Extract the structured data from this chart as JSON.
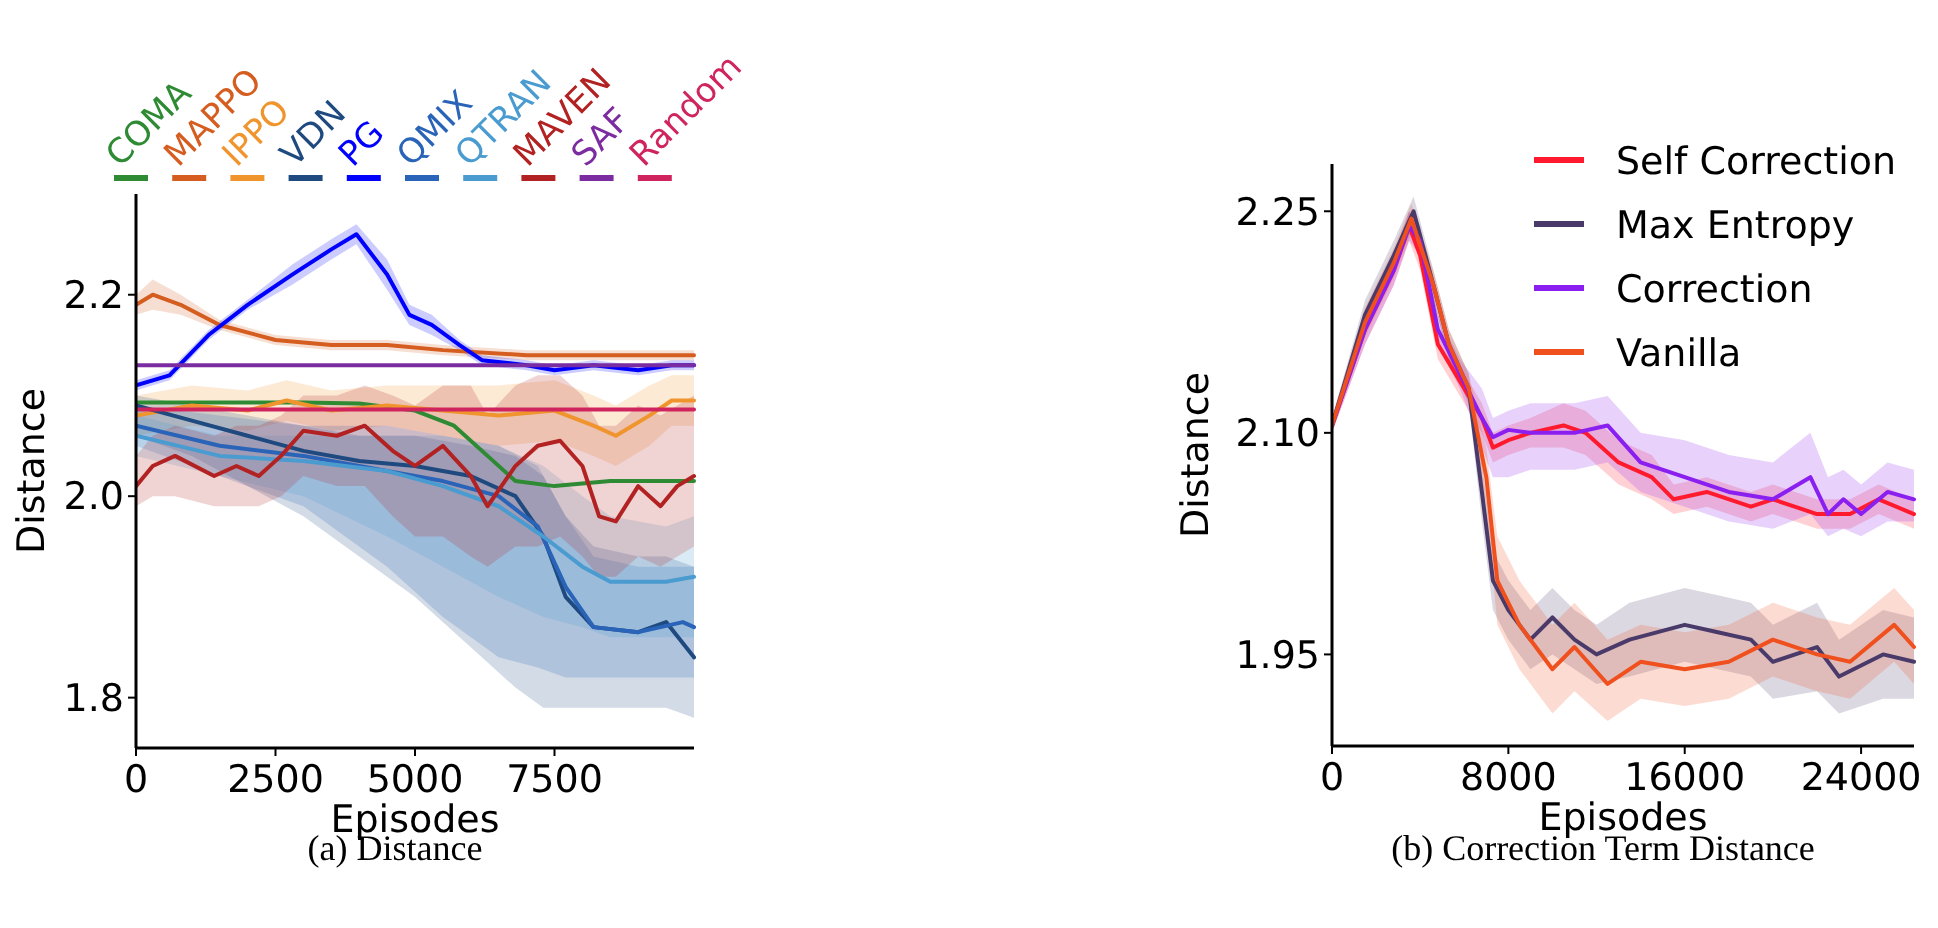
{
  "chart_data": [
    {
      "type": "line",
      "title": "(a) Distance",
      "xlabel": "Episodes",
      "ylabel": "Distance",
      "xlim": [
        0,
        10000
      ],
      "xticks": [
        0,
        2500,
        5000,
        7500
      ],
      "ylim": [
        1.75,
        2.3
      ],
      "yticks": [
        {
          "value": 1.8,
          "label": "1.8"
        },
        {
          "value": 2.0,
          "label": "2.0"
        },
        {
          "value": 2.2,
          "label": "2.2"
        }
      ],
      "legend": "top",
      "grid": false,
      "series": [
        {
          "name": "COMA",
          "color": "#2e8b34",
          "x": [
            0,
            1000,
            2000,
            3000,
            4000,
            5000,
            5700,
            6300,
            6800,
            7500,
            8500,
            10000
          ],
          "values": [
            2.093,
            2.093,
            2.093,
            2.093,
            2.092,
            2.085,
            2.07,
            2.04,
            2.015,
            2.01,
            2.015,
            2.015
          ]
        },
        {
          "name": "MAPPO",
          "color": "#d45d1f",
          "x": [
            0,
            300,
            800,
            1500,
            2500,
            3500,
            4500,
            5500,
            7000,
            8500,
            10000
          ],
          "values": [
            2.19,
            2.2,
            2.19,
            2.17,
            2.155,
            2.15,
            2.15,
            2.145,
            2.14,
            2.14,
            2.14
          ],
          "lower": [
            2.18,
            2.185,
            2.18,
            2.165,
            2.15,
            2.145,
            2.145,
            2.14,
            2.135,
            2.135,
            2.135
          ],
          "upper": [
            2.2,
            2.215,
            2.2,
            2.175,
            2.16,
            2.155,
            2.155,
            2.15,
            2.145,
            2.145,
            2.145
          ]
        },
        {
          "name": "IPPO",
          "color": "#f0952e",
          "x": [
            0,
            1000,
            2000,
            2700,
            3500,
            4500,
            5500,
            6500,
            7500,
            8200,
            8600,
            9200,
            9600,
            10000
          ],
          "values": [
            2.08,
            2.09,
            2.085,
            2.095,
            2.085,
            2.09,
            2.085,
            2.08,
            2.085,
            2.07,
            2.06,
            2.08,
            2.095,
            2.095
          ],
          "lower": [
            2.06,
            2.07,
            2.065,
            2.075,
            2.065,
            2.07,
            2.06,
            2.05,
            2.055,
            2.04,
            2.03,
            2.05,
            2.07,
            2.07
          ],
          "upper": [
            2.1,
            2.11,
            2.105,
            2.115,
            2.105,
            2.11,
            2.11,
            2.11,
            2.115,
            2.1,
            2.09,
            2.11,
            2.12,
            2.12
          ]
        },
        {
          "name": "VDN",
          "color": "#1f4a80",
          "x": [
            0,
            1000,
            2000,
            3000,
            4000,
            5000,
            6000,
            6800,
            7300,
            7700,
            8200,
            9000,
            9500,
            10000
          ],
          "values": [
            2.09,
            2.075,
            2.06,
            2.045,
            2.035,
            2.03,
            2.02,
            2.0,
            1.96,
            1.9,
            1.87,
            1.865,
            1.875,
            1.84
          ],
          "lower": [
            2.06,
            2.04,
            2.01,
            1.98,
            1.94,
            1.9,
            1.85,
            1.81,
            1.79,
            1.79,
            1.79,
            1.79,
            1.79,
            1.78
          ],
          "upper": [
            2.1,
            2.09,
            2.08,
            2.07,
            2.06,
            2.06,
            2.05,
            2.04,
            2.02,
            1.98,
            1.95,
            1.94,
            1.94,
            1.93
          ]
        },
        {
          "name": "PG",
          "color": "#0000ff",
          "x": [
            0,
            600,
            1300,
            2000,
            2800,
            3500,
            3950,
            4500,
            4900,
            5300,
            5800,
            6200,
            7000,
            7500,
            8200,
            9000,
            9600,
            10000
          ],
          "values": [
            2.11,
            2.12,
            2.16,
            2.19,
            2.22,
            2.245,
            2.26,
            2.22,
            2.18,
            2.17,
            2.15,
            2.135,
            2.13,
            2.125,
            2.13,
            2.125,
            2.13,
            2.13
          ],
          "lower": [
            2.105,
            2.115,
            2.155,
            2.185,
            2.21,
            2.235,
            2.25,
            2.205,
            2.17,
            2.16,
            2.145,
            2.13,
            2.125,
            2.12,
            2.125,
            2.12,
            2.125,
            2.125
          ],
          "upper": [
            2.115,
            2.125,
            2.165,
            2.195,
            2.23,
            2.255,
            2.27,
            2.235,
            2.19,
            2.18,
            2.155,
            2.14,
            2.135,
            2.13,
            2.135,
            2.13,
            2.135,
            2.135
          ]
        },
        {
          "name": "QMIX",
          "color": "#2a64b8",
          "x": [
            0,
            1500,
            3000,
            4500,
            5500,
            6500,
            7200,
            7700,
            8200,
            9000,
            9800,
            10000
          ],
          "values": [
            2.07,
            2.05,
            2.04,
            2.025,
            2.015,
            2.0,
            1.97,
            1.91,
            1.87,
            1.865,
            1.875,
            1.87
          ],
          "lower": [
            2.05,
            2.02,
            1.99,
            1.93,
            1.88,
            1.84,
            1.83,
            1.82,
            1.82,
            1.82,
            1.82,
            1.82
          ],
          "upper": [
            2.09,
            2.08,
            2.07,
            2.07,
            2.06,
            2.05,
            2.03,
            1.98,
            1.94,
            1.93,
            1.93,
            1.93
          ]
        },
        {
          "name": "QTRAN",
          "color": "#4a9bd0",
          "x": [
            0,
            1500,
            3000,
            4500,
            5500,
            6500,
            7300,
            8000,
            8500,
            9500,
            10000
          ],
          "values": [
            2.06,
            2.04,
            2.035,
            2.025,
            2.01,
            1.99,
            1.96,
            1.93,
            1.915,
            1.915,
            1.92
          ],
          "lower": [
            2.04,
            2.02,
            2.0,
            1.96,
            1.93,
            1.9,
            1.88,
            1.87,
            1.86,
            1.86,
            1.86
          ],
          "upper": [
            2.08,
            2.06,
            2.06,
            2.06,
            2.06,
            2.05,
            2.03,
            2.0,
            1.98,
            1.97,
            1.98
          ]
        },
        {
          "name": "MAVEN",
          "color": "#b22222",
          "x": [
            0,
            300,
            700,
            1400,
            1800,
            2200,
            2600,
            3000,
            3600,
            4100,
            4600,
            5000,
            5500,
            6000,
            6300,
            6800,
            7200,
            7600,
            8000,
            8300,
            8600,
            9000,
            9400,
            9700,
            10000
          ],
          "values": [
            2.01,
            2.03,
            2.04,
            2.02,
            2.03,
            2.02,
            2.04,
            2.065,
            2.06,
            2.07,
            2.045,
            2.03,
            2.05,
            2.02,
            1.99,
            2.03,
            2.05,
            2.055,
            2.03,
            1.98,
            1.975,
            2.01,
            1.99,
            2.01,
            2.02
          ],
          "lower": [
            1.99,
            2.0,
            2.0,
            1.99,
            1.99,
            1.99,
            2.0,
            2.02,
            2.01,
            2.01,
            1.98,
            1.96,
            1.96,
            1.94,
            1.93,
            1.95,
            1.95,
            1.96,
            1.94,
            1.92,
            1.92,
            1.94,
            1.93,
            1.94,
            1.95
          ],
          "upper": [
            2.04,
            2.06,
            2.07,
            2.06,
            2.07,
            2.07,
            2.08,
            2.1,
            2.1,
            2.11,
            2.1,
            2.09,
            2.11,
            2.11,
            2.08,
            2.11,
            2.12,
            2.12,
            2.1,
            2.07,
            2.07,
            2.09,
            2.08,
            2.09,
            2.1
          ]
        },
        {
          "name": "SAF",
          "color": "#7b2ca0",
          "x": [
            0,
            2500,
            5000,
            7500,
            10000
          ],
          "values": [
            2.13,
            2.13,
            2.13,
            2.13,
            2.13
          ]
        },
        {
          "name": "Random",
          "color": "#d0245e",
          "x": [
            0,
            2500,
            5000,
            7500,
            10000
          ],
          "values": [
            2.086,
            2.086,
            2.086,
            2.086,
            2.086
          ]
        }
      ]
    },
    {
      "type": "line",
      "title": "(b) Correction Term Distance",
      "xlabel": "Episodes",
      "ylabel": "Distance",
      "xlim": [
        0,
        26400
      ],
      "xticks": [
        0,
        8000,
        16000,
        24000
      ],
      "ylim": [
        1.888,
        2.282
      ],
      "yticks": [
        {
          "value": 1.95,
          "label": "1.95"
        },
        {
          "value": 2.1,
          "label": "2.10"
        },
        {
          "value": 2.25,
          "label": "2.25"
        }
      ],
      "legend": "top right",
      "grid": false,
      "series": [
        {
          "name": "Self Correction",
          "color": "#ff1a2e",
          "x": [
            0,
            1500,
            2800,
            3500,
            4000,
            4800,
            5800,
            6800,
            7300,
            8000,
            9000,
            10500,
            11500,
            13000,
            14500,
            15500,
            17000,
            19000,
            20000,
            22000,
            23500,
            24800,
            26400
          ],
          "values": [
            2.105,
            2.17,
            2.21,
            2.24,
            2.22,
            2.16,
            2.135,
            2.11,
            2.09,
            2.095,
            2.1,
            2.105,
            2.1,
            2.08,
            2.07,
            2.055,
            2.06,
            2.05,
            2.055,
            2.045,
            2.045,
            2.055,
            2.045
          ],
          "lower": [
            2.1,
            2.16,
            2.2,
            2.23,
            2.21,
            2.15,
            2.125,
            2.1,
            2.08,
            2.085,
            2.09,
            2.09,
            2.085,
            2.065,
            2.055,
            2.045,
            2.05,
            2.04,
            2.045,
            2.035,
            2.035,
            2.045,
            2.035
          ],
          "upper": [
            2.11,
            2.18,
            2.22,
            2.25,
            2.23,
            2.17,
            2.145,
            2.12,
            2.1,
            2.105,
            2.11,
            2.12,
            2.115,
            2.095,
            2.085,
            2.065,
            2.07,
            2.06,
            2.065,
            2.055,
            2.055,
            2.065,
            2.055
          ]
        },
        {
          "name": "Max Entropy",
          "color": "#4a3a6a",
          "x": [
            0,
            1500,
            2800,
            3700,
            4600,
            5300,
            6200,
            6800,
            7300,
            8000,
            9000,
            10000,
            11000,
            12000,
            13500,
            16000,
            17500,
            19000,
            20000,
            22000,
            23000,
            25000,
            26400
          ],
          "values": [
            2.105,
            2.18,
            2.22,
            2.25,
            2.2,
            2.16,
            2.13,
            2.06,
            2.0,
            1.98,
            1.96,
            1.975,
            1.96,
            1.95,
            1.96,
            1.97,
            1.965,
            1.96,
            1.945,
            1.955,
            1.935,
            1.95,
            1.945
          ],
          "lower": [
            2.1,
            2.17,
            2.21,
            2.24,
            2.19,
            2.15,
            2.12,
            2.04,
            1.98,
            1.96,
            1.94,
            1.95,
            1.94,
            1.93,
            1.935,
            1.945,
            1.94,
            1.935,
            1.92,
            1.925,
            1.91,
            1.92,
            1.92
          ],
          "upper": [
            2.11,
            2.19,
            2.23,
            2.26,
            2.21,
            2.17,
            2.14,
            2.08,
            2.02,
            2.0,
            1.98,
            1.995,
            1.98,
            1.97,
            1.985,
            1.995,
            1.99,
            1.985,
            1.97,
            1.985,
            1.96,
            1.98,
            1.975
          ]
        },
        {
          "name": "Correction",
          "color": "#8a1ff0",
          "x": [
            0,
            1500,
            2800,
            3500,
            4000,
            4800,
            5800,
            6800,
            7300,
            8000,
            9000,
            10500,
            11000,
            12500,
            14000,
            16000,
            18000,
            20000,
            21700,
            22500,
            23200,
            24000,
            25200,
            26400
          ],
          "values": [
            2.105,
            2.17,
            2.21,
            2.24,
            2.23,
            2.17,
            2.14,
            2.11,
            2.097,
            2.102,
            2.1,
            2.1,
            2.1,
            2.105,
            2.08,
            2.07,
            2.06,
            2.055,
            2.07,
            2.045,
            2.055,
            2.045,
            2.06,
            2.055
          ],
          "lower": [
            2.1,
            2.16,
            2.2,
            2.23,
            2.22,
            2.16,
            2.13,
            2.09,
            2.07,
            2.07,
            2.075,
            2.075,
            2.075,
            2.08,
            2.06,
            2.05,
            2.04,
            2.035,
            2.045,
            2.03,
            2.035,
            2.03,
            2.04,
            2.04
          ],
          "upper": [
            2.11,
            2.18,
            2.22,
            2.25,
            2.24,
            2.18,
            2.15,
            2.13,
            2.11,
            2.115,
            2.12,
            2.12,
            2.12,
            2.125,
            2.1,
            2.095,
            2.085,
            2.08,
            2.1,
            2.07,
            2.075,
            2.065,
            2.08,
            2.075
          ]
        },
        {
          "name": "Vanilla",
          "color": "#f0501e",
          "x": [
            0,
            1500,
            2800,
            3600,
            4600,
            5300,
            6200,
            7000,
            7500,
            8500,
            10000,
            11000,
            12500,
            14000,
            16000,
            18000,
            20000,
            22000,
            23500,
            25500,
            26400
          ],
          "values": [
            2.105,
            2.175,
            2.215,
            2.245,
            2.2,
            2.16,
            2.13,
            2.07,
            2.0,
            1.97,
            1.94,
            1.955,
            1.93,
            1.945,
            1.94,
            1.945,
            1.96,
            1.95,
            1.945,
            1.97,
            1.955
          ],
          "lower": [
            2.1,
            2.165,
            2.205,
            2.235,
            2.19,
            2.15,
            2.12,
            2.05,
            1.97,
            1.94,
            1.91,
            1.925,
            1.905,
            1.92,
            1.915,
            1.92,
            1.935,
            1.925,
            1.92,
            1.945,
            1.93
          ],
          "upper": [
            2.11,
            2.185,
            2.225,
            2.255,
            2.21,
            2.17,
            2.14,
            2.09,
            2.03,
            2.0,
            1.97,
            1.985,
            1.96,
            1.97,
            1.965,
            1.97,
            1.985,
            1.975,
            1.97,
            1.995,
            1.98
          ]
        }
      ]
    }
  ]
}
